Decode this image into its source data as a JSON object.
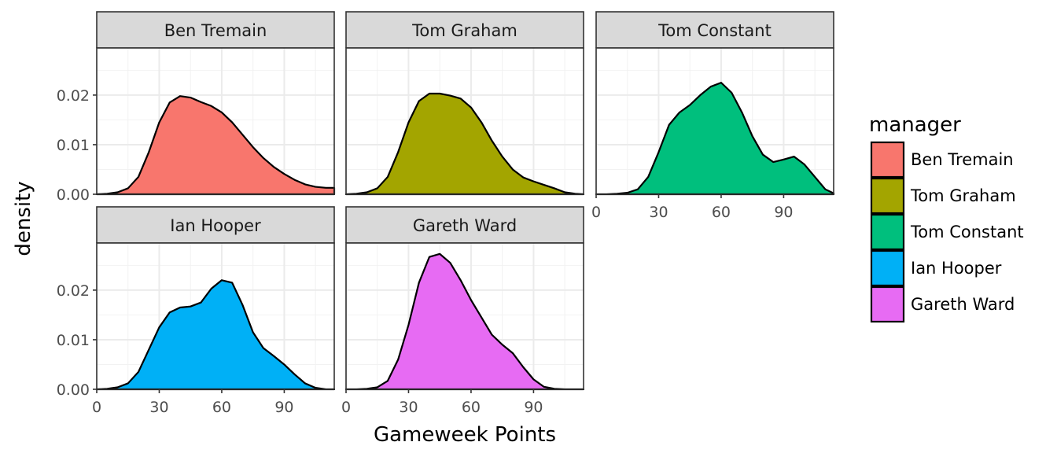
{
  "chart_data": {
    "type": "area",
    "xlabel": "Gameweek Points",
    "ylabel": "density",
    "xlim": [
      0,
      114
    ],
    "ylim": [
      0,
      0.0295
    ],
    "x_ticks": [
      0,
      30,
      60,
      90
    ],
    "x_tick_labels": [
      "0",
      "30",
      "60",
      "90"
    ],
    "y_ticks": [
      0.0,
      0.01,
      0.02
    ],
    "y_tick_labels": [
      "0.00",
      "0.01",
      "0.02"
    ],
    "grid": true,
    "legend": {
      "title": "manager",
      "position": "right"
    },
    "x": [
      0,
      5,
      10,
      15,
      20,
      25,
      30,
      35,
      40,
      45,
      50,
      55,
      60,
      65,
      70,
      75,
      80,
      85,
      90,
      95,
      100,
      105,
      110,
      114
    ],
    "series": [
      {
        "name": "Ben Tremain",
        "color": "#F8766D",
        "values": [
          0.0,
          0.0001,
          0.0004,
          0.0012,
          0.0035,
          0.0085,
          0.0145,
          0.0185,
          0.0198,
          0.0195,
          0.0186,
          0.0178,
          0.0165,
          0.0145,
          0.012,
          0.0095,
          0.0073,
          0.0055,
          0.0041,
          0.0029,
          0.002,
          0.0015,
          0.0013,
          0.0013
        ]
      },
      {
        "name": "Tom Graham",
        "color": "#A3A500",
        "values": [
          0.0,
          0.0001,
          0.0004,
          0.0012,
          0.0035,
          0.0085,
          0.0145,
          0.0188,
          0.0203,
          0.0203,
          0.0199,
          0.0193,
          0.0175,
          0.0145,
          0.0108,
          0.0076,
          0.005,
          0.0034,
          0.0026,
          0.0019,
          0.0012,
          0.0004,
          0.0001,
          0.0
        ]
      },
      {
        "name": "Tom Constant",
        "color": "#00BF7D",
        "values": [
          0.0,
          0.0,
          0.0001,
          0.0003,
          0.001,
          0.0035,
          0.0085,
          0.014,
          0.0165,
          0.018,
          0.02,
          0.0217,
          0.0225,
          0.0205,
          0.0165,
          0.0117,
          0.008,
          0.0065,
          0.007,
          0.0076,
          0.006,
          0.0035,
          0.001,
          0.0002
        ]
      },
      {
        "name": "Ian Hooper",
        "color": "#00B0F6",
        "values": [
          0.0,
          0.0001,
          0.0004,
          0.0012,
          0.0035,
          0.008,
          0.0125,
          0.0155,
          0.0165,
          0.0167,
          0.0175,
          0.0203,
          0.022,
          0.0215,
          0.017,
          0.0115,
          0.0083,
          0.0067,
          0.005,
          0.003,
          0.0012,
          0.0003,
          0.0,
          0.0
        ]
      },
      {
        "name": "Gareth Ward",
        "color": "#E76BF3",
        "values": [
          0.0,
          0.0,
          0.0001,
          0.0004,
          0.0017,
          0.006,
          0.013,
          0.0215,
          0.0267,
          0.0273,
          0.0255,
          0.022,
          0.018,
          0.0145,
          0.011,
          0.009,
          0.0073,
          0.0045,
          0.002,
          0.0005,
          0.0001,
          0.0,
          0.0,
          0.0
        ]
      }
    ]
  }
}
